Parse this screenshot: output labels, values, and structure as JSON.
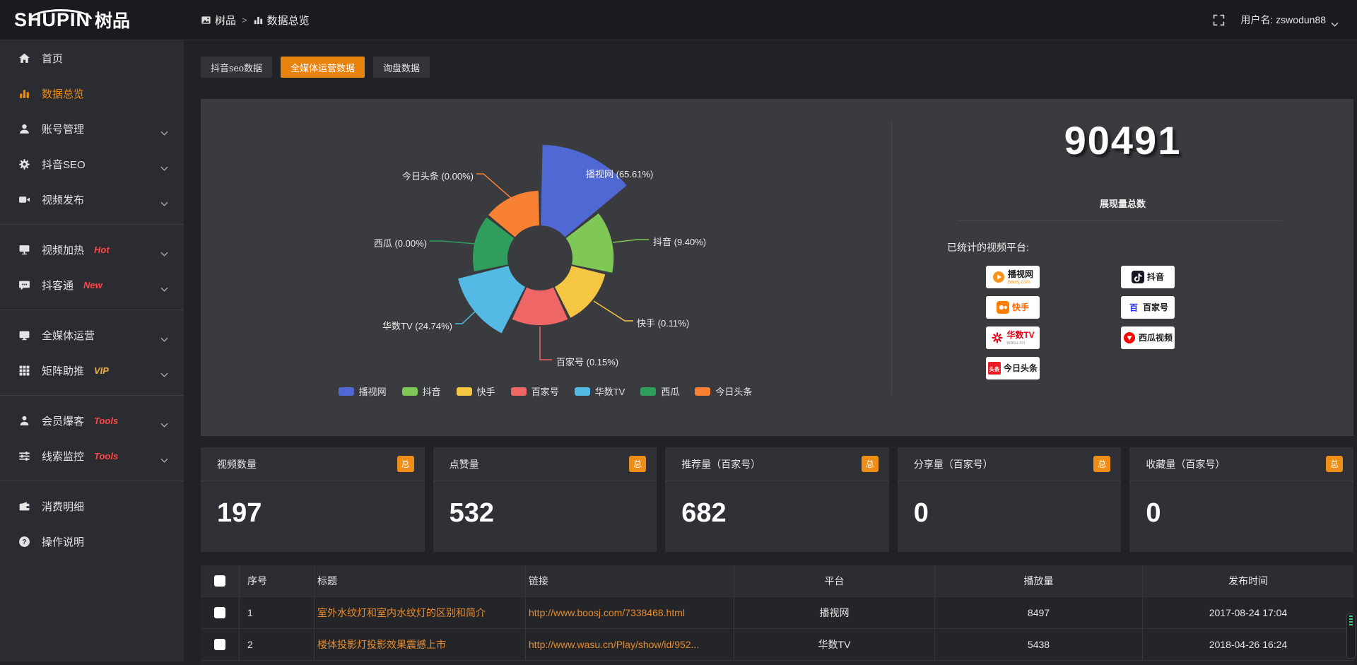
{
  "topbar": {
    "logo_en": "SHUPIN",
    "logo_cn": "树品",
    "breadcrumb": [
      {
        "icon": "photo-icon",
        "label": "树品"
      },
      {
        "icon": "bar-chart-icon",
        "label": "数据总览"
      }
    ],
    "separator": ">",
    "username": "用户名: zswodun88"
  },
  "sidebar": {
    "items": [
      {
        "icon": "home-icon",
        "label": "首页",
        "active": false,
        "chevron": false,
        "tag": "",
        "divider_after": false
      },
      {
        "icon": "bar-chart-icon",
        "label": "数据总览",
        "active": true,
        "chevron": false,
        "tag": "",
        "divider_after": false
      },
      {
        "icon": "user-icon",
        "label": "账号管理",
        "active": false,
        "chevron": true,
        "tag": "",
        "divider_after": false
      },
      {
        "icon": "gear-icon",
        "label": "抖音SEO",
        "active": false,
        "chevron": true,
        "tag": "",
        "divider_after": false
      },
      {
        "icon": "video-camera-icon",
        "label": "视频发布",
        "active": false,
        "chevron": true,
        "tag": "",
        "divider_after": true
      },
      {
        "icon": "screen-icon",
        "label": "视频加热",
        "active": false,
        "chevron": true,
        "tag": "Hot",
        "tag_color": "#ff4545",
        "divider_after": false
      },
      {
        "icon": "chat-icon",
        "label": "抖客通",
        "active": false,
        "chevron": true,
        "tag": "New",
        "tag_color": "#ff4545",
        "divider_after": true
      },
      {
        "icon": "monitor-icon",
        "label": "全媒体运营",
        "active": false,
        "chevron": true,
        "tag": "",
        "divider_after": false
      },
      {
        "icon": "grid-icon",
        "label": "矩阵助推",
        "active": false,
        "chevron": true,
        "tag": "VIP",
        "tag_color": "#efb041",
        "divider_after": true
      },
      {
        "icon": "member-icon",
        "label": "会员爆客",
        "active": false,
        "chevron": true,
        "tag": "Tools",
        "tag_color": "#ff4545",
        "divider_after": false
      },
      {
        "icon": "sliders-icon",
        "label": "线索监控",
        "active": false,
        "chevron": true,
        "tag": "Tools",
        "tag_color": "#ff4545",
        "divider_after": true
      },
      {
        "icon": "wallet-icon",
        "label": "消费明细",
        "active": false,
        "chevron": false,
        "tag": "",
        "divider_after": false
      },
      {
        "icon": "question-icon",
        "label": "操作说明",
        "active": false,
        "chevron": false,
        "tag": "",
        "divider_after": false
      }
    ]
  },
  "tabs": [
    {
      "label": "抖音seo数据",
      "active": false
    },
    {
      "label": "全媒体运营数据",
      "active": true
    },
    {
      "label": "询盘数据",
      "active": false
    }
  ],
  "chart_data": {
    "type": "pie",
    "style": "rose",
    "legend_position": "bottom",
    "series": [
      {
        "name": "播视网",
        "value": 65.61,
        "color": "#4f68d4"
      },
      {
        "name": "抖音",
        "value": 9.4,
        "color": "#7fc855"
      },
      {
        "name": "快手",
        "value": 0.11,
        "color": "#f5c642"
      },
      {
        "name": "百家号",
        "value": 0.15,
        "color": "#ee6666"
      },
      {
        "name": "华数TV",
        "value": 24.74,
        "color": "#54b9e4"
      },
      {
        "name": "西瓜",
        "value": 0.0,
        "color": "#2f9e5d"
      },
      {
        "name": "今日头条",
        "value": 0.0,
        "color": "#f98134"
      }
    ]
  },
  "stats_panel": {
    "total_value": "90491",
    "total_label": "展现量总数",
    "platforms_label": "已统计的视频平台:",
    "platforms": [
      {
        "icon": "boosj-play-icon",
        "name": "播视网",
        "name_color": "#1a1a1a",
        "sub": "boosj.com",
        "sub_color": "#f7941d"
      },
      {
        "icon": "douyin-note-icon",
        "name": "抖音",
        "name_color": "#1a1a1a",
        "sub": "",
        "sub_color": ""
      },
      {
        "icon": "kuaishou-icon",
        "name": "快手",
        "name_color": "#ff6600",
        "sub": "",
        "sub_color": ""
      },
      {
        "icon": "baijiahao-icon",
        "name": "百家号",
        "name_color": "#1a1a1a",
        "sub": "",
        "sub_color": ""
      },
      {
        "icon": "wasu-star-icon",
        "name": "华数TV",
        "name_color": "#e60012",
        "sub": "wasu.cn",
        "sub_color": "#999999"
      },
      {
        "icon": "xigua-icon",
        "name": "西瓜视频",
        "name_color": "#1a1a1a",
        "sub": "",
        "sub_color": ""
      },
      {
        "icon": "toutiao-icon",
        "name": "今日头条",
        "name_color": "#1a1a1a",
        "sub": "",
        "sub_color": ""
      }
    ]
  },
  "cards": [
    {
      "title": "视频数量",
      "badge": "总",
      "value": "197"
    },
    {
      "title": "点赞量",
      "badge": "总",
      "value": "532"
    },
    {
      "title": "推荐量（百家号）",
      "badge": "总",
      "value": "682"
    },
    {
      "title": "分享量（百家号）",
      "badge": "总",
      "value": "0"
    },
    {
      "title": "收藏量（百家号）",
      "badge": "总",
      "value": "0"
    }
  ],
  "table": {
    "headers": [
      "序号",
      "标题",
      "链接",
      "平台",
      "播放量",
      "发布时间"
    ],
    "rows": [
      {
        "id": "1",
        "title": "室外水纹灯和室内水纹灯的区别和简介",
        "link": "http://www.boosj.com/7338468.html",
        "platform": "播视网",
        "plays": "8497",
        "time": "2017-08-24 17:04"
      },
      {
        "id": "2",
        "title": "楼体投影灯投影效果震撼上市",
        "link": "http://www.wasu.cn/Play/show/id/952...",
        "platform": "华数TV",
        "plays": "5438",
        "time": "2018-04-26 16:24"
      }
    ]
  },
  "colors": {
    "accent": "#e8830e",
    "badge_orange": "#ef8e17",
    "link_orange": "#e78b2e",
    "active_text": "#ef8b13"
  }
}
